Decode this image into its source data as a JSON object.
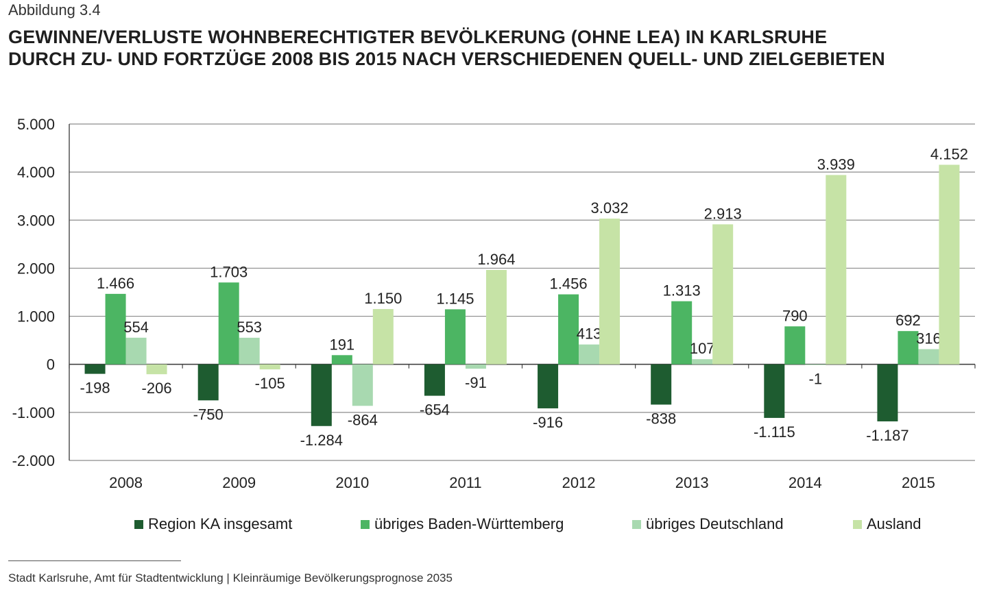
{
  "figure_label": "Abbildung 3.4",
  "title_lines": [
    "GEWINNE/VERLUSTE WOHNBERECHTIGTER BEVÖLKERUNG (OHNE LEA) IN KARLSRUHE",
    "DURCH ZU- UND FORTZÜGE 2008 BIS 2015 NACH VERSCHIEDENEN QUELL- UND ZIELGEBIETEN"
  ],
  "source": "Stadt Karlsruhe, Amt für Stadtentwicklung | Kleinräumige Bevölkerungsprognose 2035",
  "chart_data": {
    "type": "bar",
    "categories": [
      "2008",
      "2009",
      "2010",
      "2011",
      "2012",
      "2013",
      "2014",
      "2015"
    ],
    "series": [
      {
        "name": "Region KA insgesamt",
        "color": "#1e5c30",
        "values": [
          -198,
          -750,
          -1284,
          -654,
          -916,
          -838,
          -1115,
          -1187
        ],
        "labels": [
          "-198",
          "-750",
          "-1.284",
          "-654",
          "-916",
          "-838",
          "-1.115",
          "-1.187"
        ]
      },
      {
        "name": "übriges Baden-Württemberg",
        "color": "#4cb563",
        "values": [
          1466,
          1703,
          191,
          1145,
          1456,
          1313,
          790,
          692
        ],
        "labels": [
          "1.466",
          "1.703",
          "191",
          "1.145",
          "1.456",
          "1.313",
          "790",
          "692"
        ]
      },
      {
        "name": "übriges Deutschland",
        "color": "#a8d9b0",
        "values": [
          554,
          553,
          -864,
          -91,
          413,
          107,
          -1,
          316
        ],
        "labels": [
          "554",
          "553",
          "-864",
          "-91",
          "413",
          "107",
          "-1",
          "316"
        ]
      },
      {
        "name": "Ausland",
        "color": "#c6e3a6",
        "values": [
          -206,
          -105,
          1150,
          1964,
          3032,
          2913,
          3939,
          4152
        ],
        "labels": [
          "-206",
          "-105",
          "1.150",
          "1.964",
          "3.032",
          "2.913",
          "3.939",
          "4.152"
        ]
      }
    ],
    "yticks": [
      5000,
      4000,
      3000,
      2000,
      1000,
      0,
      -1000,
      -2000
    ],
    "ytick_labels": [
      "5.000",
      "4.000",
      "3.000",
      "2.000",
      "1.000",
      "0",
      "-1.000",
      "-2.000"
    ],
    "ylim": [
      -2000,
      5000
    ],
    "grid": true,
    "legend_position": "bottom"
  }
}
